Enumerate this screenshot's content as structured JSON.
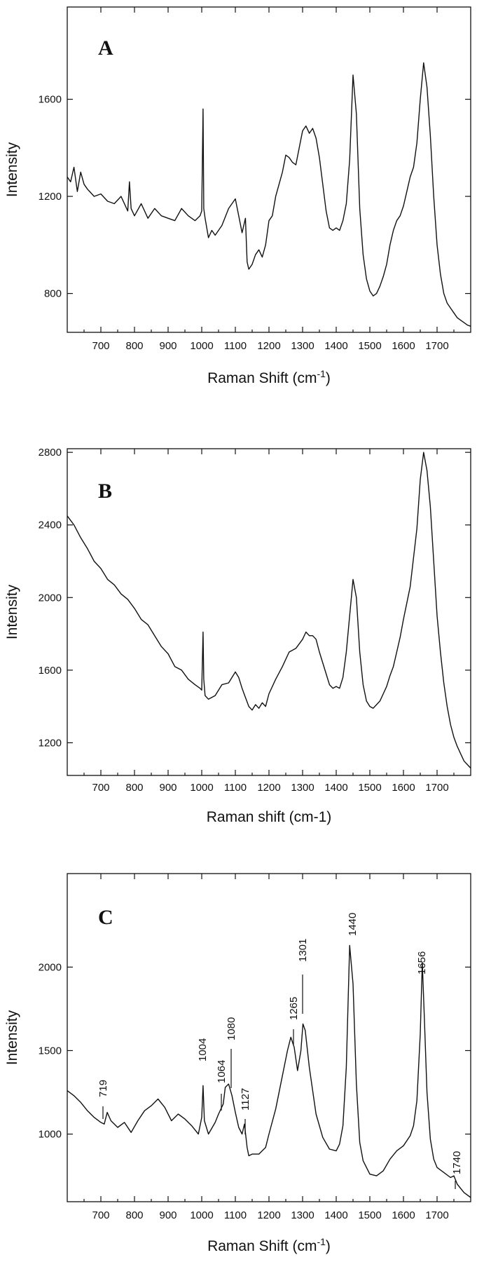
{
  "chart_data": [
    {
      "type": "line",
      "panel_letter": "A",
      "xlabel": "Raman Shift (cm",
      "xlabel_sup": "-1",
      "xlabel_tail": ")",
      "ylabel": "Intensity",
      "xlim": [
        600,
        1800
      ],
      "ylim": [
        640,
        1980
      ],
      "xticks": [
        700,
        800,
        900,
        1000,
        1100,
        1200,
        1300,
        1400,
        1500,
        1600,
        1700
      ],
      "yticks": [
        800,
        1200,
        1600
      ],
      "grid": false,
      "series": [
        {
          "x": [
            600,
            610,
            620,
            630,
            640,
            650,
            660,
            680,
            700,
            720,
            740,
            760,
            780,
            785,
            790,
            800,
            820,
            840,
            860,
            880,
            900,
            920,
            940,
            960,
            980,
            995,
            1000,
            1004,
            1006,
            1010,
            1020,
            1030,
            1040,
            1060,
            1080,
            1100,
            1110,
            1120,
            1130,
            1135,
            1140,
            1150,
            1160,
            1170,
            1180,
            1190,
            1200,
            1210,
            1220,
            1240,
            1250,
            1260,
            1270,
            1280,
            1290,
            1300,
            1310,
            1320,
            1330,
            1340,
            1350,
            1360,
            1370,
            1380,
            1390,
            1400,
            1410,
            1420,
            1430,
            1440,
            1450,
            1460,
            1470,
            1480,
            1490,
            1500,
            1510,
            1520,
            1530,
            1540,
            1550,
            1560,
            1570,
            1580,
            1590,
            1600,
            1610,
            1620,
            1630,
            1640,
            1650,
            1660,
            1670,
            1680,
            1690,
            1700,
            1710,
            1720,
            1730,
            1740,
            1750,
            1760,
            1770,
            1780,
            1790,
            1800
          ],
          "y": [
            1280,
            1260,
            1320,
            1220,
            1300,
            1250,
            1230,
            1200,
            1210,
            1180,
            1170,
            1200,
            1140,
            1260,
            1150,
            1120,
            1170,
            1110,
            1150,
            1120,
            1110,
            1100,
            1150,
            1120,
            1100,
            1120,
            1140,
            1560,
            1150,
            1110,
            1030,
            1060,
            1040,
            1080,
            1150,
            1190,
            1120,
            1050,
            1110,
            930,
            900,
            920,
            960,
            980,
            950,
            1000,
            1100,
            1120,
            1200,
            1300,
            1370,
            1360,
            1340,
            1330,
            1400,
            1470,
            1490,
            1460,
            1480,
            1440,
            1360,
            1250,
            1140,
            1070,
            1060,
            1070,
            1060,
            1100,
            1170,
            1350,
            1700,
            1540,
            1150,
            960,
            860,
            810,
            790,
            800,
            830,
            870,
            920,
            1000,
            1060,
            1100,
            1120,
            1160,
            1220,
            1280,
            1320,
            1420,
            1600,
            1750,
            1650,
            1450,
            1200,
            1000,
            880,
            800,
            760,
            740,
            720,
            700,
            690,
            680,
            670,
            665
          ]
        }
      ]
    },
    {
      "type": "line",
      "panel_letter": "B",
      "xlabel": "Raman shift (cm-1)",
      "ylabel": "Intensity",
      "xlim": [
        600,
        1800
      ],
      "ylim": [
        1020,
        2820
      ],
      "xticks": [
        700,
        800,
        900,
        1000,
        1100,
        1200,
        1300,
        1400,
        1500,
        1600,
        1700
      ],
      "yticks": [
        1200,
        1600,
        2000,
        2400,
        2800
      ],
      "grid": false,
      "series": [
        {
          "x": [
            600,
            620,
            640,
            660,
            680,
            700,
            720,
            740,
            760,
            780,
            800,
            820,
            840,
            860,
            880,
            900,
            920,
            940,
            960,
            980,
            995,
            1000,
            1004,
            1006,
            1010,
            1020,
            1040,
            1060,
            1080,
            1100,
            1110,
            1120,
            1130,
            1140,
            1150,
            1160,
            1170,
            1180,
            1190,
            1200,
            1220,
            1240,
            1260,
            1280,
            1300,
            1310,
            1320,
            1330,
            1340,
            1350,
            1360,
            1370,
            1380,
            1390,
            1400,
            1410,
            1420,
            1430,
            1440,
            1450,
            1460,
            1470,
            1480,
            1490,
            1500,
            1510,
            1520,
            1530,
            1540,
            1550,
            1560,
            1570,
            1580,
            1590,
            1600,
            1620,
            1640,
            1650,
            1660,
            1670,
            1680,
            1690,
            1700,
            1710,
            1720,
            1730,
            1740,
            1750,
            1760,
            1770,
            1780,
            1790,
            1800
          ],
          "y": [
            2450,
            2400,
            2330,
            2270,
            2200,
            2160,
            2100,
            2070,
            2020,
            1990,
            1940,
            1880,
            1850,
            1790,
            1730,
            1690,
            1620,
            1600,
            1550,
            1520,
            1500,
            1490,
            1810,
            1550,
            1460,
            1440,
            1460,
            1520,
            1530,
            1590,
            1560,
            1500,
            1450,
            1400,
            1380,
            1410,
            1390,
            1420,
            1400,
            1470,
            1550,
            1620,
            1700,
            1720,
            1770,
            1810,
            1790,
            1790,
            1770,
            1700,
            1640,
            1580,
            1520,
            1500,
            1510,
            1500,
            1560,
            1700,
            1900,
            2100,
            2000,
            1700,
            1520,
            1430,
            1400,
            1390,
            1410,
            1430,
            1470,
            1510,
            1570,
            1620,
            1700,
            1780,
            1880,
            2060,
            2380,
            2650,
            2800,
            2700,
            2500,
            2200,
            1900,
            1700,
            1530,
            1400,
            1300,
            1230,
            1180,
            1140,
            1100,
            1080,
            1060
          ]
        }
      ]
    },
    {
      "type": "line",
      "panel_letter": "C",
      "xlabel": "Raman Shift (cm",
      "xlabel_sup": "-1",
      "xlabel_tail": ")",
      "ylabel": "Intensity",
      "xlim": [
        600,
        1800
      ],
      "ylim": [
        595,
        2560
      ],
      "xticks": [
        700,
        800,
        900,
        1000,
        1100,
        1200,
        1300,
        1400,
        1500,
        1600,
        1700
      ],
      "yticks": [
        1000,
        1500,
        2000
      ],
      "grid": false,
      "annotations": [
        "719",
        "1004",
        "1064",
        "1080",
        "1127",
        "1265",
        "1301",
        "1440",
        "1656",
        "1740"
      ],
      "series": [
        {
          "x": [
            600,
            620,
            640,
            660,
            680,
            700,
            710,
            719,
            730,
            750,
            770,
            790,
            810,
            830,
            850,
            870,
            890,
            910,
            930,
            950,
            970,
            990,
            1000,
            1004,
            1008,
            1020,
            1040,
            1050,
            1064,
            1070,
            1080,
            1090,
            1100,
            1110,
            1120,
            1127,
            1135,
            1140,
            1150,
            1170,
            1190,
            1200,
            1220,
            1240,
            1255,
            1265,
            1275,
            1285,
            1295,
            1301,
            1308,
            1320,
            1340,
            1360,
            1380,
            1400,
            1410,
            1420,
            1430,
            1440,
            1450,
            1460,
            1470,
            1480,
            1500,
            1520,
            1540,
            1560,
            1580,
            1600,
            1620,
            1630,
            1640,
            1650,
            1656,
            1662,
            1670,
            1680,
            1690,
            1700,
            1720,
            1740,
            1750,
            1760,
            1780,
            1800
          ],
          "y": [
            1260,
            1230,
            1190,
            1140,
            1100,
            1070,
            1060,
            1130,
            1080,
            1040,
            1070,
            1010,
            1080,
            1140,
            1170,
            1210,
            1160,
            1080,
            1120,
            1090,
            1050,
            1000,
            1100,
            1290,
            1080,
            1000,
            1070,
            1120,
            1180,
            1280,
            1300,
            1230,
            1130,
            1040,
            1000,
            1060,
            920,
            870,
            880,
            880,
            920,
            1000,
            1150,
            1350,
            1500,
            1580,
            1520,
            1380,
            1500,
            1660,
            1620,
            1400,
            1120,
            980,
            910,
            900,
            940,
            1050,
            1400,
            2130,
            1900,
            1300,
            950,
            840,
            760,
            750,
            780,
            850,
            900,
            930,
            990,
            1050,
            1200,
            1600,
            2030,
            1700,
            1250,
            970,
            850,
            800,
            770,
            740,
            750,
            700,
            650,
            620
          ]
        }
      ]
    }
  ]
}
